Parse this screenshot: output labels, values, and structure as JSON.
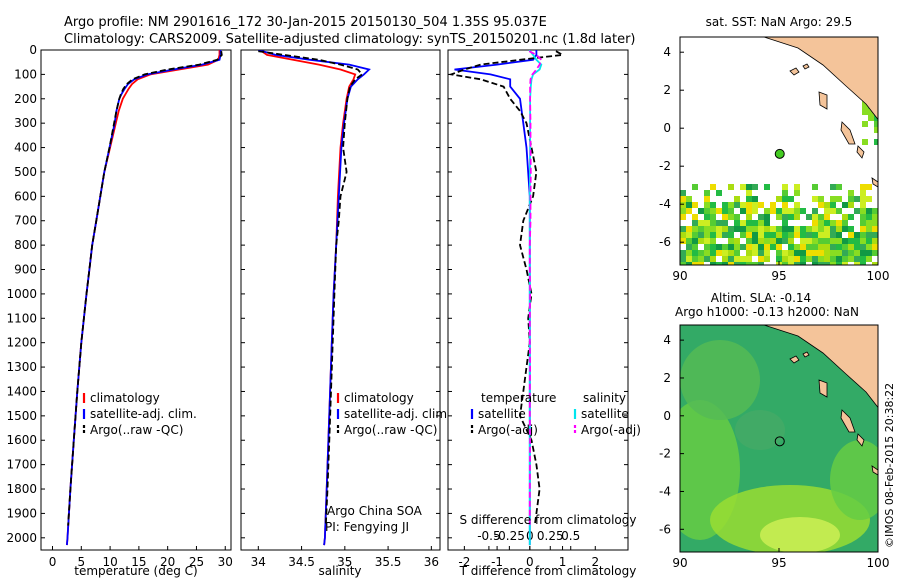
{
  "header": {
    "title_line1": "Argo profile: NM 2901616_172 30-Jan-2015 20150130_504 1.35S 95.037E",
    "title_line2": "Climatology: CARS2009. Satellite-adjusted climatology: synTS_20150201.nc (1.8d later)"
  },
  "chart_data": [
    {
      "type": "line",
      "panel": "temperature",
      "xlabel": "temperature (deg C)",
      "xlim": [
        -2,
        31
      ],
      "xticks": [
        0,
        5,
        10,
        15,
        20,
        25,
        30
      ],
      "ylim": [
        2050,
        0
      ],
      "yticks": [
        0,
        100,
        200,
        300,
        400,
        500,
        600,
        700,
        800,
        900,
        1000,
        1100,
        1200,
        1300,
        1400,
        1500,
        1600,
        1700,
        1800,
        1900,
        2000
      ],
      "legend": [
        "climatology",
        "satellite-adj. clim.",
        "Argo(..raw -QC)"
      ],
      "series": [
        {
          "name": "climatology",
          "color": "#ff0000",
          "dash": "",
          "depth": [
            0,
            20,
            40,
            60,
            80,
            100,
            120,
            140,
            160,
            180,
            200,
            250,
            300,
            400,
            500,
            600,
            700,
            800,
            900,
            1000,
            1200,
            1400,
            1600,
            1800,
            2000,
            2030
          ],
          "values": [
            29.0,
            29.0,
            28.8,
            27.0,
            22.0,
            17.0,
            14.8,
            13.8,
            13.2,
            12.7,
            12.2,
            11.5,
            11.0,
            10.0,
            9.0,
            8.3,
            7.6,
            6.9,
            6.4,
            5.9,
            5.0,
            4.3,
            3.7,
            3.1,
            2.6,
            2.5
          ]
        },
        {
          "name": "satellite-adj. clim.",
          "color": "#0000ff",
          "dash": "",
          "depth": [
            0,
            20,
            40,
            60,
            80,
            100,
            120,
            140,
            160,
            180,
            200,
            250,
            300,
            400,
            500,
            600,
            700,
            800,
            900,
            1000,
            1200,
            1400,
            1600,
            1800,
            2000,
            2030
          ],
          "values": [
            29.2,
            29.2,
            29.0,
            26.0,
            21.0,
            16.5,
            14.2,
            13.1,
            12.5,
            12.0,
            11.6,
            11.1,
            10.8,
            9.9,
            9.0,
            8.3,
            7.6,
            6.9,
            6.4,
            5.9,
            5.0,
            4.3,
            3.7,
            3.1,
            2.6,
            2.5
          ]
        },
        {
          "name": "Argo(..raw -QC)",
          "color": "#000000",
          "dash": "6,3",
          "depth": [
            5,
            20,
            40,
            60,
            80,
            100,
            120,
            140,
            160,
            180,
            200,
            250,
            300,
            400,
            500,
            600,
            700,
            800,
            900,
            1000,
            1200,
            1400,
            1600,
            1800,
            1950
          ],
          "values": [
            29.3,
            29.4,
            28.6,
            25.5,
            20.0,
            16.0,
            13.9,
            12.9,
            12.3,
            11.9,
            11.6,
            11.1,
            10.7,
            9.9,
            9.0,
            8.3,
            7.6,
            6.9,
            6.4,
            5.9,
            5.0,
            4.3,
            3.7,
            3.1,
            2.7
          ]
        }
      ]
    },
    {
      "type": "line",
      "panel": "salinity",
      "xlabel": "salinity",
      "xlim": [
        33.8,
        36.1
      ],
      "xticks": [
        34,
        34.5,
        35,
        35.5,
        36
      ],
      "ylim": [
        2050,
        0
      ],
      "legend": [
        "climatology",
        "satellite-adj. clim.",
        "Argo(..raw -QC)"
      ],
      "annotation": [
        "Argo China SOA",
        "PI: Fengying JI"
      ],
      "series": [
        {
          "name": "climatology",
          "color": "#ff0000",
          "dash": "",
          "depth": [
            0,
            20,
            40,
            60,
            80,
            100,
            120,
            150,
            200,
            300,
            400,
            600,
            800,
            1000,
            1200,
            1400,
            1600,
            1800,
            2000,
            2030
          ],
          "values": [
            34.02,
            34.1,
            34.4,
            34.7,
            34.95,
            35.12,
            35.1,
            35.05,
            35.02,
            34.98,
            34.95,
            34.92,
            34.9,
            34.87,
            34.85,
            34.83,
            34.81,
            34.79,
            34.77,
            34.76
          ]
        },
        {
          "name": "satellite-adj. clim.",
          "color": "#0000ff",
          "dash": "",
          "depth": [
            0,
            20,
            40,
            60,
            80,
            100,
            120,
            150,
            200,
            300,
            400,
            600,
            800,
            1000,
            1200,
            1400,
            1600,
            1800,
            2000,
            2030
          ],
          "values": [
            34.0,
            34.2,
            34.6,
            35.05,
            35.28,
            35.22,
            35.15,
            35.07,
            35.03,
            34.99,
            34.96,
            34.93,
            34.9,
            34.87,
            34.85,
            34.83,
            34.81,
            34.79,
            34.77,
            34.76
          ]
        },
        {
          "name": "Argo(..raw -QC)",
          "color": "#000000",
          "dash": "6,3",
          "depth": [
            5,
            20,
            40,
            60,
            80,
            100,
            120,
            150,
            200,
            300,
            400,
            500,
            600,
            700,
            800,
            1000,
            1200,
            1400,
            1600,
            1800,
            1950
          ],
          "values": [
            34.0,
            34.3,
            34.7,
            34.95,
            35.15,
            35.2,
            35.12,
            35.06,
            35.03,
            35.0,
            34.98,
            35.02,
            34.95,
            34.93,
            34.9,
            34.88,
            34.86,
            34.84,
            34.82,
            34.8,
            34.78
          ]
        }
      ]
    },
    {
      "type": "line",
      "panel": "difference",
      "xlabel": "T difference from climatology",
      "xlabel_top": "S difference from climatology",
      "xlim": [
        -2.5,
        3.0
      ],
      "xticks": [
        -2,
        -1,
        0,
        1,
        2
      ],
      "s_xticks": [
        -0.5,
        -0.25,
        0,
        0.25,
        0.5
      ],
      "s_ticklabels": [
        "-0.5",
        "-0.25",
        "0",
        "0.25",
        "0.5"
      ],
      "ylim": [
        2050,
        0
      ],
      "legend_temperature": {
        "title": "temperature",
        "items": [
          "satellite",
          "Argo(-adj)"
        ]
      },
      "legend_salinity": {
        "title": "salinity",
        "items": [
          "satellite",
          "Argo(-adj)"
        ]
      },
      "series": [
        {
          "name": "temperature satellite",
          "color": "#0000ff",
          "dash": "",
          "depth": [
            0,
            20,
            40,
            60,
            80,
            100,
            120,
            150,
            200,
            300,
            400,
            600,
            800,
            1000,
            1200,
            1400,
            1600,
            1800,
            2000,
            2030
          ],
          "values": [
            0.2,
            0.2,
            0.1,
            -1.0,
            -2.3,
            -1.2,
            -0.6,
            -0.6,
            -0.3,
            -0.2,
            -0.1,
            0,
            0,
            0,
            0,
            0,
            0,
            0,
            0,
            0
          ]
        },
        {
          "name": "temperature Argo(-adj)",
          "color": "#000000",
          "dash": "6,3",
          "depth": [
            5,
            20,
            40,
            60,
            80,
            100,
            120,
            150,
            200,
            250,
            300,
            400,
            500,
            600,
            700,
            800,
            900,
            1000,
            1100,
            1200,
            1300,
            1400,
            1500,
            1600,
            1700,
            1800,
            1900,
            1950
          ],
          "values": [
            0.8,
            1.0,
            -0.3,
            -1.5,
            -2.0,
            -2.4,
            -1.5,
            -0.8,
            -0.6,
            -0.3,
            -0.1,
            0.05,
            0.2,
            0.1,
            -0.2,
            -0.3,
            -0.1,
            0.05,
            -0.05,
            0,
            -0.1,
            -0.2,
            -0.3,
            0.05,
            0.2,
            0.3,
            0.2,
            0.15
          ]
        },
        {
          "name": "salinity satellite",
          "color": "#00e5ee",
          "dash": "",
          "depth": [
            0,
            20,
            40,
            60,
            80,
            100,
            120,
            150,
            200,
            300,
            400,
            600,
            800,
            1000,
            1200,
            1400,
            1600,
            1800,
            2000,
            2030
          ],
          "values": [
            -0.02,
            0.1,
            0.2,
            0.35,
            0.3,
            0.1,
            0.05,
            0.03,
            0.01,
            0.01,
            0.01,
            0,
            0,
            0,
            0,
            0,
            0,
            0,
            0,
            0
          ]
        },
        {
          "name": "salinity Argo(-adj)",
          "color": "#ff00ff",
          "dash": "6,3",
          "depth": [
            5,
            20,
            40,
            60,
            80,
            100,
            120,
            150,
            200,
            300,
            400,
            500,
            600,
            700,
            800,
            900,
            1000,
            1100,
            1200,
            1300,
            1400,
            1500,
            1600,
            1800,
            1950
          ],
          "values": [
            -0.02,
            0.2,
            0.35,
            0.3,
            0.2,
            0.08,
            0.02,
            0.01,
            0.01,
            0.02,
            0.02,
            0.03,
            0.02,
            0.02,
            0.0,
            0.0,
            0.01,
            0.0,
            0.0,
            0.01,
            0.0,
            0.0,
            0.01,
            0.0,
            0.0
          ]
        }
      ]
    },
    {
      "type": "heatmap",
      "panel": "sat-sst-map",
      "title": "sat. SST: NaN Argo: 29.5",
      "xticks": [
        90,
        95,
        100
      ],
      "yticks": [
        4,
        2,
        0,
        -2,
        -4,
        -6
      ],
      "xlim": [
        90,
        100
      ],
      "ylim": [
        -7.2,
        4.8
      ],
      "argo_marker": {
        "lon": 95.037,
        "lat": -1.35,
        "color": "#44cc22"
      }
    },
    {
      "type": "heatmap",
      "panel": "altim-sla-map",
      "title_line1": "Altim. SLA: -0.14",
      "title_line2": "Argo h1000: -0.13 h2000: NaN",
      "xticks": [
        90,
        95,
        100
      ],
      "yticks": [
        4,
        2,
        0,
        -2,
        -4,
        -6
      ],
      "xlim": [
        90,
        100
      ],
      "ylim": [
        -7.2,
        4.8
      ],
      "argo_marker": {
        "lon": 95.037,
        "lat": -1.35,
        "color": "none"
      }
    }
  ],
  "side_label": "©IMOS 08-Feb-2015 20:38:22",
  "colors": {
    "land": "#f4c49a",
    "ocean_sla": "#33aa66",
    "axis": "#000000"
  }
}
